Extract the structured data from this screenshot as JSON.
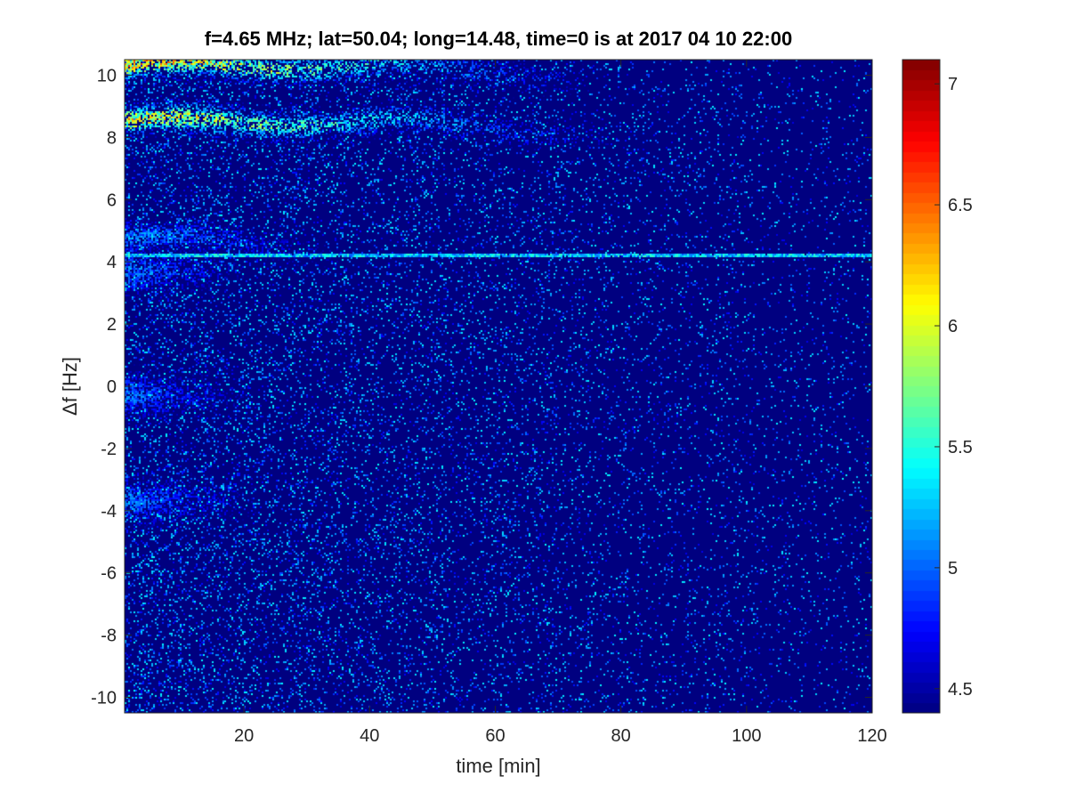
{
  "chart_data": {
    "type": "heatmap",
    "title": "f=4.65 MHz;  lat=50.04; long=14.48, time=0 is at 2017 04 10 22:00",
    "xlabel": "time [min]",
    "ylabel": "Δf [Hz]",
    "xlim": [
      1,
      120
    ],
    "ylim": [
      -10.5,
      10.5
    ],
    "x_ticks": [
      20,
      40,
      60,
      80,
      100,
      120
    ],
    "x_tick_labels": [
      "20",
      "40",
      "60",
      "80",
      "100",
      "120"
    ],
    "y_ticks": [
      -10,
      -8,
      -6,
      -4,
      -2,
      0,
      2,
      4,
      6,
      8,
      10
    ],
    "y_tick_labels": [
      "-10",
      "-8",
      "-6",
      "-4",
      "-2",
      "0",
      "2",
      "4",
      "6",
      "8",
      "10"
    ],
    "colorbar": {
      "colormap": "jet",
      "range": [
        4.4,
        7.1
      ],
      "ticks": [
        4.5,
        5,
        5.5,
        6,
        6.5,
        7
      ],
      "tick_labels": [
        "4.5",
        "5",
        "5.5",
        "6",
        "6.5",
        "7"
      ]
    },
    "background_level": 4.4,
    "features": [
      {
        "kind": "band",
        "x_start": 1,
        "x_end": 75,
        "y_center": 10.3,
        "intensity": 6.8
      },
      {
        "kind": "band",
        "x_start": 1,
        "x_end": 78,
        "y_center": 8.5,
        "intensity": 6.6
      },
      {
        "kind": "band",
        "x_start": 1,
        "x_end": 35,
        "y_center": 4.7,
        "intensity": 5.4
      },
      {
        "kind": "line",
        "x_start": 1,
        "x_end": 120,
        "y_center": 4.2,
        "intensity": 5.6
      },
      {
        "kind": "blob",
        "x_start": 1,
        "x_end": 20,
        "y_center": 3.7,
        "intensity": 5.3
      },
      {
        "kind": "blob",
        "x_start": 1,
        "x_end": 20,
        "y_center": -0.3,
        "intensity": 5.3
      },
      {
        "kind": "blob",
        "x_start": 1,
        "x_end": 22,
        "y_center": -3.7,
        "intensity": 5.3
      }
    ]
  }
}
